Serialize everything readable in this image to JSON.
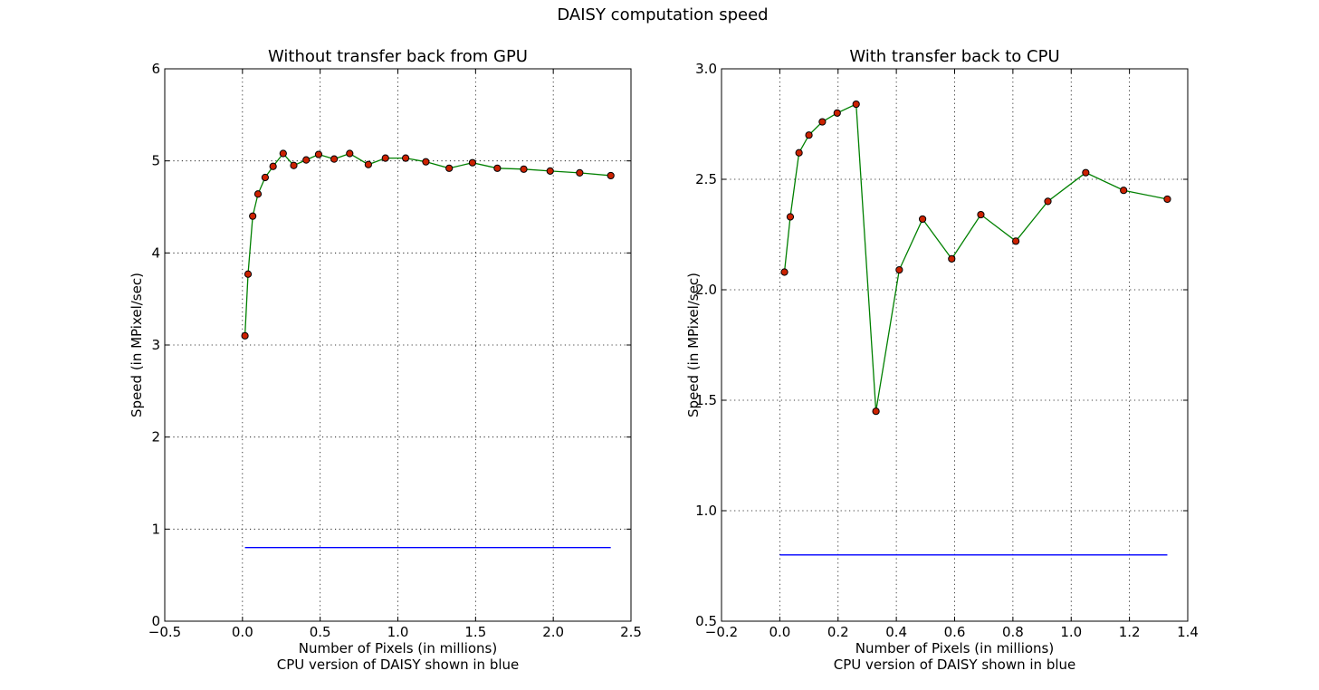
{
  "figure": {
    "suptitle": "DAISY computation speed"
  },
  "colors": {
    "gpu_line": "#008000",
    "marker_fill": "#cc2200",
    "marker_edge": "#000000",
    "cpu_line": "#0000ff"
  },
  "chart_data": [
    {
      "type": "line",
      "title": "Without transfer back from GPU",
      "xlabel": "Number of Pixels (in millions)",
      "xlabel2": "CPU version of DAISY shown in blue",
      "ylabel": "Speed (in MPixel/sec)",
      "xlim": [
        -0.5,
        2.5
      ],
      "ylim": [
        0,
        6
      ],
      "xticks": [
        -0.5,
        0.0,
        0.5,
        1.0,
        1.5,
        2.0,
        2.5
      ],
      "xtick_labels": [
        "−0.5",
        "0.0",
        "0.5",
        "1.0",
        "1.5",
        "2.0",
        "2.5"
      ],
      "yticks": [
        0,
        1,
        2,
        3,
        4,
        5,
        6
      ],
      "ytick_labels": [
        "0",
        "1",
        "2",
        "3",
        "4",
        "5",
        "6"
      ],
      "grid": true,
      "series": [
        {
          "color": "#008000",
          "marker": "circle",
          "x": [
            0.016,
            0.036,
            0.066,
            0.1,
            0.146,
            0.197,
            0.262,
            0.33,
            0.41,
            0.49,
            0.59,
            0.69,
            0.81,
            0.92,
            1.05,
            1.18,
            1.33,
            1.48,
            1.64,
            1.81,
            1.98,
            2.17,
            2.37
          ],
          "y": [
            3.1,
            3.77,
            4.4,
            4.64,
            4.82,
            4.94,
            5.08,
            4.95,
            5.01,
            5.07,
            5.02,
            5.08,
            4.96,
            5.03,
            5.03,
            4.99,
            4.92,
            4.98,
            4.92,
            4.91,
            4.89,
            4.87,
            4.84
          ]
        },
        {
          "color": "#0000ff",
          "marker": "none",
          "x": [
            0.016,
            2.37
          ],
          "y": [
            0.8,
            0.8
          ]
        }
      ]
    },
    {
      "type": "line",
      "title": "With transfer back to CPU",
      "xlabel": "Number of Pixels (in millions)",
      "xlabel2": "CPU version of DAISY shown in blue",
      "ylabel": "Speed (in MPixel/sec)",
      "xlim": [
        -0.2,
        1.4
      ],
      "ylim": [
        0.5,
        3.0
      ],
      "xticks": [
        -0.2,
        0.0,
        0.2,
        0.4,
        0.6,
        0.8,
        1.0,
        1.2,
        1.4
      ],
      "xtick_labels": [
        "−0.2",
        "0.0",
        "0.2",
        "0.4",
        "0.6",
        "0.8",
        "1.0",
        "1.2",
        "1.4"
      ],
      "yticks": [
        0.5,
        1.0,
        1.5,
        2.0,
        2.5,
        3.0
      ],
      "ytick_labels": [
        "0.5",
        "1.0",
        "1.5",
        "2.0",
        "2.5",
        "3.0"
      ],
      "grid": true,
      "series": [
        {
          "color": "#008000",
          "marker": "circle",
          "x": [
            0.016,
            0.036,
            0.066,
            0.1,
            0.146,
            0.197,
            0.262,
            0.33,
            0.41,
            0.49,
            0.59,
            0.69,
            0.81,
            0.92,
            1.05,
            1.18,
            1.33
          ],
          "y": [
            2.08,
            2.33,
            2.62,
            2.7,
            2.76,
            2.8,
            2.84,
            1.45,
            2.09,
            2.32,
            2.14,
            2.34,
            2.22,
            2.4,
            2.53,
            2.45,
            2.41
          ]
        },
        {
          "color": "#0000ff",
          "marker": "none",
          "x": [
            0.0,
            1.33
          ],
          "y": [
            0.8,
            0.8
          ]
        }
      ]
    }
  ]
}
